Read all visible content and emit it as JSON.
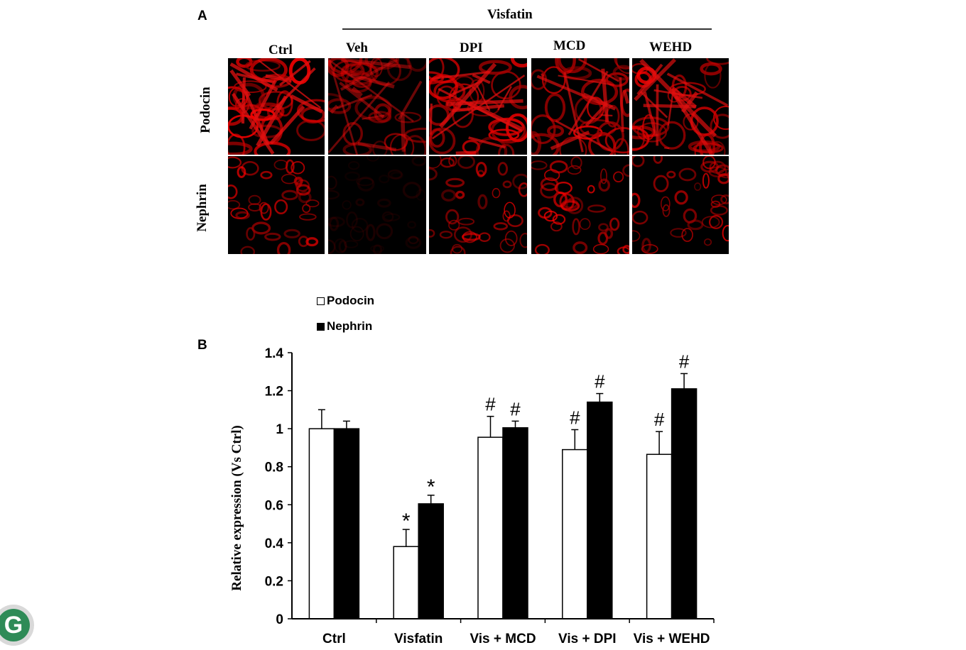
{
  "panel_a": {
    "letter": "A",
    "group_label": "Visfatin",
    "columns": [
      "Ctrl",
      "Veh",
      "DPI",
      "MCD",
      "WEHD"
    ],
    "rows": [
      "Podocin",
      "Nephrin"
    ],
    "brightness": [
      [
        0.95,
        0.6,
        0.9,
        0.85,
        0.85
      ],
      [
        0.8,
        0.12,
        0.75,
        0.8,
        0.8
      ]
    ]
  },
  "panel_b": {
    "letter": "B"
  },
  "logo": {
    "glyph": "G",
    "icon": "publisher-logo-icon",
    "color": "#2e8b57"
  },
  "chart_data": {
    "type": "bar",
    "categories": [
      "Ctrl",
      "Visfatin",
      "Vis + MCD",
      "Vis + DPI",
      "Vis + WEHD"
    ],
    "series": [
      {
        "name": "Podocin",
        "values": [
          1.0,
          0.38,
          0.955,
          0.89,
          0.865
        ],
        "errors": [
          0.1,
          0.09,
          0.11,
          0.105,
          0.12
        ],
        "marks": [
          "",
          "*",
          "#",
          "#",
          "#"
        ],
        "color": "#ffffff"
      },
      {
        "name": "Nephrin",
        "values": [
          1.0,
          0.605,
          1.005,
          1.14,
          1.21
        ],
        "errors": [
          0.04,
          0.045,
          0.035,
          0.045,
          0.08
        ],
        "marks": [
          "",
          "*",
          "#",
          "#",
          "#"
        ],
        "color": "#000000"
      }
    ],
    "ylabel": "Relative expression (Vs Ctrl)",
    "ylim": [
      0,
      1.4
    ],
    "yticks": [
      "0",
      "0.2",
      "0.4",
      "0.6",
      "0.8",
      "1",
      "1.2",
      "1.4"
    ],
    "grid": false,
    "legend_position": "top-left"
  }
}
